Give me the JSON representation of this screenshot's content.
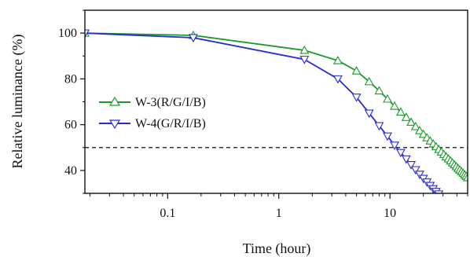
{
  "chart_data": {
    "type": "line",
    "xlabel": "Time (hour)",
    "ylabel": "Relative luminance (%)",
    "xscale": "log",
    "xlim": [
      0.018,
      50
    ],
    "ylim": [
      30,
      110
    ],
    "xticks": [
      {
        "value": 0.1,
        "label": "0.1"
      },
      {
        "value": 1,
        "label": "1"
      },
      {
        "value": 10,
        "label": "10"
      }
    ],
    "yticks": [
      {
        "value": 40,
        "label": "40"
      },
      {
        "value": 60,
        "label": "60"
      },
      {
        "value": 80,
        "label": "80"
      },
      {
        "value": 100,
        "label": "100"
      }
    ],
    "reference_line": {
      "y": 50,
      "style": "dashed"
    },
    "legend": {
      "placement": "center-left"
    },
    "series": [
      {
        "name": "W-3(R/G/I/B)",
        "color": "#1a9a2a",
        "marker": "triangle-up",
        "x": [
          0.018,
          0.17,
          1.7,
          3.4,
          5.0,
          6.5,
          8.0,
          9.5,
          11,
          12.5,
          14,
          15.5,
          17,
          18.5,
          20,
          21.5,
          23,
          24.5,
          26,
          27.5,
          29,
          30.5,
          32,
          33.5,
          35,
          36.5,
          38,
          39.5,
          41,
          42.5,
          44,
          45.5,
          47,
          48.5,
          50
        ],
        "y": [
          100,
          99,
          92.5,
          88,
          83.5,
          78.8,
          74.8,
          71.2,
          68.1,
          65.5,
          63.2,
          61.1,
          59.2,
          57.4,
          55.8,
          54.3,
          52.9,
          51.6,
          50.4,
          49.2,
          48.1,
          47.0,
          46.0,
          45.1,
          44.2,
          43.3,
          42.5,
          41.7,
          40.9,
          40.2,
          39.5,
          38.8,
          38.1,
          37.5,
          36.9
        ]
      },
      {
        "name": "W-4(G/R/I/B)",
        "color": "#2a2ad2",
        "marker": "triangle-down",
        "x": [
          0.018,
          0.17,
          1.7,
          3.4,
          5.0,
          6.5,
          8.0,
          9.5,
          11,
          12.5,
          14,
          15.5,
          17,
          18.5,
          20,
          21.5,
          23,
          24.5,
          26,
          27.5
        ],
        "y": [
          100,
          98,
          88.5,
          80,
          72,
          65,
          59.5,
          55,
          51,
          47.8,
          45,
          42.5,
          40.3,
          38.3,
          36.5,
          34.9,
          33.4,
          32.0,
          30.8,
          29.7
        ]
      }
    ]
  }
}
